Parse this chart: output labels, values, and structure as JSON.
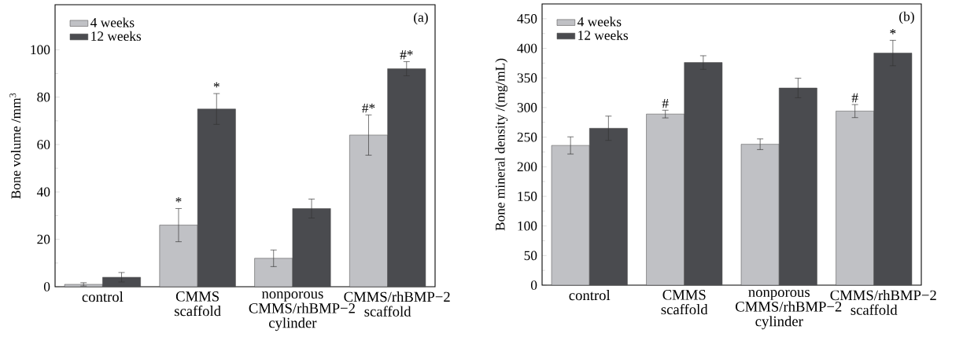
{
  "chart_data": [
    {
      "type": "bar",
      "ylabel": "Bone volume /mm$^{3}$",
      "categories": [
        "control",
        "CMMS scaffold",
        "nonporous CMMS/rhBMP−2 cylinder",
        "CMMS/rhBMP−2 scaffold"
      ],
      "series": [
        {
          "name": "4 weeks",
          "color": "#c0c1c5",
          "values": [
            1,
            26,
            12,
            64
          ],
          "errors": [
            0.7,
            7,
            3.5,
            8.5
          ]
        },
        {
          "name": "12 weeks",
          "color": "#4a4b4f",
          "values": [
            4,
            75,
            33,
            92
          ],
          "errors": [
            2,
            6.5,
            4,
            3
          ]
        }
      ],
      "ylim": [
        0,
        119
      ],
      "yticks": [
        0,
        20,
        40,
        60,
        80,
        100
      ],
      "legend": "top left",
      "grid": false,
      "annotations": [
        "(a)",
        "*",
        "*",
        "#*",
        "#*"
      ]
    },
    {
      "type": "bar",
      "ylabel": "Bone mineral density /(mg/mL)",
      "categories": [
        "control",
        "CMMS scaffold",
        "nonporous CMMS/rhBMP−2 cylinder",
        "CMMS/rhBMP−2 scaffold"
      ],
      "series": [
        {
          "name": "4 weeks",
          "color": "#c0c1c5",
          "values": [
            236,
            289,
            238,
            294
          ],
          "errors": [
            14.5,
            6.5,
            9,
            11
          ]
        },
        {
          "name": "12 weeks",
          "color": "#4a4b4f",
          "values": [
            265,
            376,
            333,
            392
          ],
          "errors": [
            20.5,
            11.5,
            16.5,
            21.5
          ]
        }
      ],
      "ylim": [
        0,
        475
      ],
      "yticks": [
        0,
        50,
        100,
        150,
        200,
        250,
        300,
        350,
        400,
        450
      ],
      "legend": "top left",
      "grid": false,
      "annotations": [
        "(b)",
        "#",
        "#",
        "*"
      ]
    }
  ]
}
